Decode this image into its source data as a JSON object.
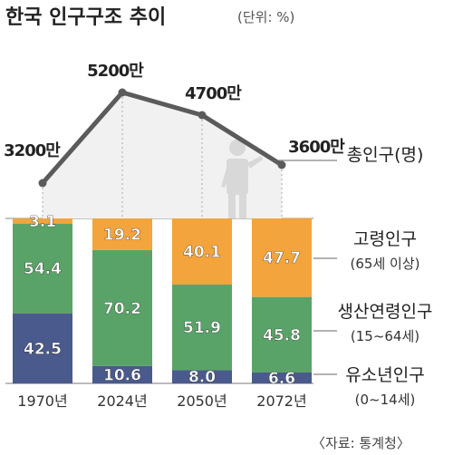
{
  "chart_data": {
    "type": "bar",
    "title": "한국 인구구조 추이",
    "unit_note": "(단위: %)",
    "categories": [
      "1970년",
      "2024년",
      "2050년",
      "2072년"
    ],
    "series": [
      {
        "name": "유소년인구",
        "range": "(0~14세)",
        "values": [
          42.5,
          10.6,
          8.0,
          6.6
        ],
        "color": "#4a5a8c"
      },
      {
        "name": "생산연령인구",
        "range": "(15~64세)",
        "values": [
          54.4,
          70.2,
          51.9,
          45.8
        ],
        "color": "#5aa368"
      },
      {
        "name": "고령인구",
        "range": "(65세 이상)",
        "values": [
          3.1,
          19.2,
          40.1,
          47.7
        ],
        "color": "#f3a43c"
      }
    ],
    "value_labels": {
      "유소년인구": [
        "42.5",
        "10.6",
        "8.0",
        "6.6"
      ],
      "생산연령인구": [
        "54.4",
        "70.2",
        "51.9",
        "45.8"
      ],
      "고령인구": [
        "3.1",
        "19.2",
        "40.1",
        "47.7"
      ]
    },
    "total_population": {
      "name": "총인구(명)",
      "labels": [
        "3200만",
        "5200만",
        "4700만",
        "3600만"
      ],
      "values_man": [
        3200,
        5200,
        4700,
        3600
      ]
    },
    "source": "〈자료: 통계청〉"
  }
}
